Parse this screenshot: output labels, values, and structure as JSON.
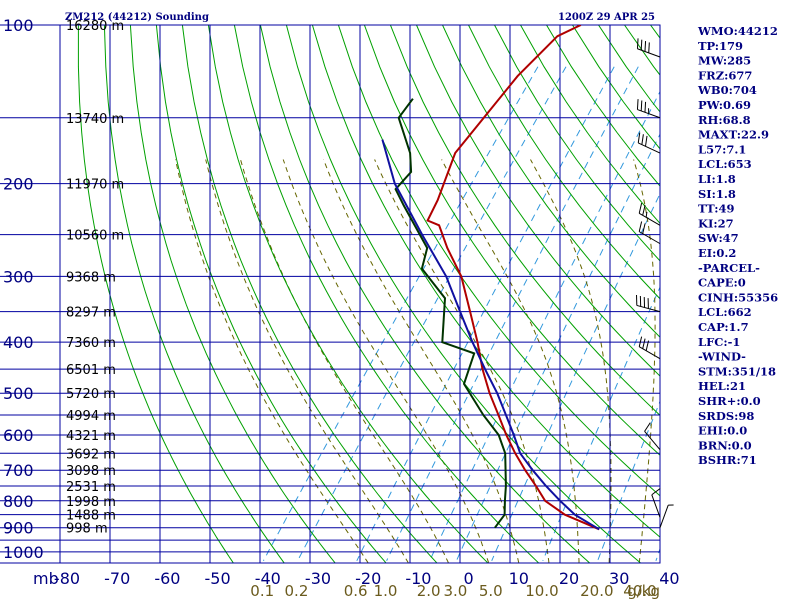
{
  "title_left": "ZM212 (44212) Sounding",
  "title_right": "1200Z 29 APR 25",
  "chart_data": {
    "type": "line",
    "x_axis": {
      "unit_label": "mb",
      "ticks": [
        -80,
        -70,
        -60,
        -50,
        -40,
        -30,
        -20,
        -10,
        0,
        10,
        20,
        30,
        40
      ],
      "range": [
        -80,
        40
      ]
    },
    "y_axis": {
      "scale": "log",
      "ticks": [
        100,
        200,
        300,
        400,
        500,
        600,
        700,
        800,
        900,
        1000
      ],
      "range": [
        100,
        1050
      ]
    },
    "height_labels": [
      {
        "p": 100,
        "text": "16280 m"
      },
      {
        "p": 150,
        "text": "13740 m"
      },
      {
        "p": 200,
        "text": "11970 m"
      },
      {
        "p": 250,
        "text": "10560 m"
      },
      {
        "p": 300,
        "text": "9368 m"
      },
      {
        "p": 350,
        "text": "8297 m"
      },
      {
        "p": 400,
        "text": "7360 m"
      },
      {
        "p": 450,
        "text": "6501 m"
      },
      {
        "p": 500,
        "text": "5720 m"
      },
      {
        "p": 550,
        "text": "4994 m"
      },
      {
        "p": 600,
        "text": "4321 m"
      },
      {
        "p": 650,
        "text": "3692 m"
      },
      {
        "p": 700,
        "text": "3098 m"
      },
      {
        "p": 750,
        "text": "2531 m"
      },
      {
        "p": 800,
        "text": "1998 m"
      },
      {
        "p": 850,
        "text": "1488 m"
      },
      {
        "p": 900,
        "text": "998 m"
      }
    ],
    "mixing_ratio_labels": [
      "0.1",
      "0.2",
      "0.6",
      "1.0",
      "2.0",
      "3.0",
      "5.0",
      "10.0",
      "20.0",
      "40.0"
    ],
    "mixing_ratio_unit": "g/kg",
    "series": [
      {
        "role": "temperature",
        "color": "#b00000",
        "points": [
          {
            "p": 100,
            "t": -57.5
          },
          {
            "p": 105,
            "t": -60.5
          },
          {
            "p": 125,
            "t": -62.5
          },
          {
            "p": 175,
            "t": -63.5
          },
          {
            "p": 215,
            "t": -60
          },
          {
            "p": 235,
            "t": -59
          },
          {
            "p": 240,
            "t": -56
          },
          {
            "p": 265,
            "t": -51
          },
          {
            "p": 300,
            "t": -44
          },
          {
            "p": 350,
            "t": -37
          },
          {
            "p": 400,
            "t": -31
          },
          {
            "p": 450,
            "t": -26
          },
          {
            "p": 500,
            "t": -21
          },
          {
            "p": 550,
            "t": -16
          },
          {
            "p": 600,
            "t": -11.5
          },
          {
            "p": 650,
            "t": -7
          },
          {
            "p": 700,
            "t": -2.5
          },
          {
            "p": 750,
            "t": 2
          },
          {
            "p": 800,
            "t": 6
          },
          {
            "p": 850,
            "t": 12
          },
          {
            "p": 906,
            "t": 21
          }
        ]
      },
      {
        "role": "dewpoint",
        "color": "#003300",
        "points": [
          {
            "p": 138,
            "t": -80
          },
          {
            "p": 150,
            "t": -80
          },
          {
            "p": 175,
            "t": -72.5
          },
          {
            "p": 190,
            "t": -69.5
          },
          {
            "p": 205,
            "t": -70
          },
          {
            "p": 220,
            "t": -66
          },
          {
            "p": 265,
            "t": -55
          },
          {
            "p": 290,
            "t": -53
          },
          {
            "p": 330,
            "t": -44
          },
          {
            "p": 400,
            "t": -38
          },
          {
            "p": 420,
            "t": -30
          },
          {
            "p": 480,
            "t": -27.5
          },
          {
            "p": 550,
            "t": -19
          },
          {
            "p": 600,
            "t": -13
          },
          {
            "p": 650,
            "t": -9
          },
          {
            "p": 750,
            "t": -4
          },
          {
            "p": 800,
            "t": -2
          },
          {
            "p": 850,
            "t": 0
          },
          {
            "p": 900,
            "t": 0
          }
        ]
      },
      {
        "role": "parcel",
        "color": "#1010a0",
        "points": [
          {
            "p": 165,
            "t": -80
          },
          {
            "p": 200,
            "t": -71
          },
          {
            "p": 250,
            "t": -58
          },
          {
            "p": 300,
            "t": -47
          },
          {
            "p": 350,
            "t": -39
          },
          {
            "p": 400,
            "t": -32
          },
          {
            "p": 450,
            "t": -25.5
          },
          {
            "p": 500,
            "t": -19.5
          },
          {
            "p": 550,
            "t": -14.5
          },
          {
            "p": 600,
            "t": -10
          },
          {
            "p": 650,
            "t": -6
          },
          {
            "p": 700,
            "t": -1
          },
          {
            "p": 750,
            "t": 4
          },
          {
            "p": 800,
            "t": 9
          },
          {
            "p": 850,
            "t": 14
          },
          {
            "p": 906,
            "t": 21
          }
        ]
      }
    ]
  },
  "indices": [
    "WMO:44212",
    "TP:179",
    "MW:285",
    "FRZ:677",
    "WB0:704",
    "PW:0.69",
    "RH:68.8",
    "MAXT:22.9",
    "L57:7.1",
    "LCL:653",
    "LI:1.8",
    "SI:1.8",
    "TT:49",
    "KI:27",
    "SW:47",
    "EI:0.2",
    "-PARCEL-",
    "CAPE:0",
    "CINH:55356",
    "LCL:662",
    "CAP:1.7",
    "LFC:-1",
    "-WIND-",
    "STM:351/18",
    "HEL:21",
    "SHR+:0.0",
    "SRDS:98",
    "EHI:0.0",
    "BRN:0.0",
    "BSHR:71"
  ],
  "wind_barbs": [
    {
      "p": 115,
      "dir": 290,
      "kt": 40
    },
    {
      "p": 150,
      "dir": 290,
      "kt": 35
    },
    {
      "p": 175,
      "dir": 295,
      "kt": 30
    },
    {
      "p": 240,
      "dir": 300,
      "kt": 25
    },
    {
      "p": 260,
      "dir": 300,
      "kt": 20
    },
    {
      "p": 350,
      "dir": 285,
      "kt": 40
    },
    {
      "p": 430,
      "dir": 300,
      "kt": 30
    },
    {
      "p": 640,
      "dir": 320,
      "kt": 10
    },
    {
      "p": 860,
      "dir": 340,
      "kt": 10
    },
    {
      "p": 900,
      "dir": 20,
      "kt": 5
    }
  ],
  "colors": {
    "grid": "#0000a0",
    "dry_adiabat": "#00a000",
    "moist_adiabat": "#666600",
    "mixing_ratio": "#3399dd"
  }
}
